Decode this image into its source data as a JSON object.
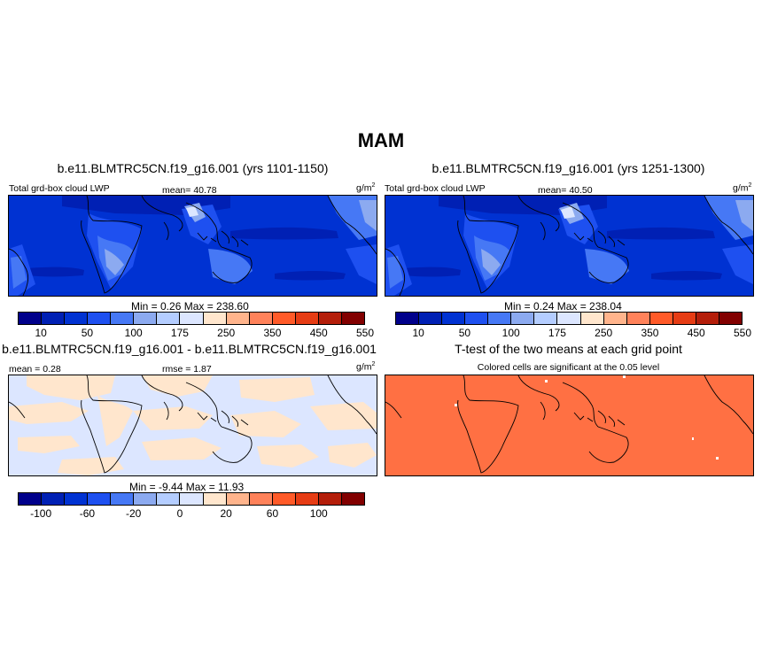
{
  "figure": {
    "title": "MAM"
  },
  "panels": {
    "p1": {
      "title": "b.e11.BLMTRC5CN.f19_g16.001 (yrs 1101-1150)",
      "left_label": "Total grd-box cloud LWP",
      "mean_text": "mean=  40.78",
      "units_base": "g/m",
      "units_exp": "2",
      "minmax": "Min =   0.26 Max = 238.60"
    },
    "p2": {
      "title": "b.e11.BLMTRC5CN.f19_g16.001 (yrs 1251-1300)",
      "left_label": "Total grd-box cloud LWP",
      "mean_text": "mean=  40.50",
      "units_base": "g/m",
      "units_exp": "2",
      "minmax": "Min =   0.24 Max = 238.04"
    },
    "p3": {
      "title": "b.e11.BLMTRC5CN.f19_g16.001 - b.e11.BLMTRC5CN.f19_g16.001",
      "mean_text": "mean =   0.28",
      "rmse_text": "rmse =   1.87",
      "units_base": "g/m",
      "units_exp": "2",
      "minmax": "Min =  -9.44 Max =  11.93"
    },
    "p4": {
      "title": "T-test of the two means at each grid point",
      "subtitle": "Colored cells are significant at the 0.05 level"
    }
  },
  "colorbars": {
    "lwp": {
      "colors": [
        "#00008b",
        "#0020b4",
        "#0032d2",
        "#1e50f0",
        "#4678f5",
        "#8caaf0",
        "#b4cdff",
        "#dce6ff",
        "#ffe6cd",
        "#ffb48c",
        "#ff825a",
        "#ff5a28",
        "#e63c14",
        "#b41e0a",
        "#820000"
      ],
      "tick_labels": [
        "10",
        "50",
        "100",
        "175",
        "250",
        "350",
        "450",
        "550"
      ]
    },
    "diff": {
      "colors": [
        "#00008b",
        "#0020b4",
        "#0032d2",
        "#1e50f0",
        "#4678f5",
        "#8caaf0",
        "#b4cdff",
        "#dce6ff",
        "#ffe6cd",
        "#ffb48c",
        "#ff825a",
        "#ff5a28",
        "#e63c14",
        "#b41e0a",
        "#820000"
      ],
      "tick_labels": [
        "-100",
        "-60",
        "-20",
        "0",
        "20",
        "60",
        "100"
      ]
    }
  },
  "map_colors": {
    "lwp_background": "#0032d2",
    "lwp_dark": "#0020b4",
    "lwp_low": "#1e50f0",
    "lwp_lower": "#4678f5",
    "lwp_lowest": "#8caaf0",
    "lwp_min": "#dce6ff",
    "diff_light_blue": "#dce6ff",
    "diff_light_orange": "#ffe6cd",
    "ttest_orange": "#ff7043"
  }
}
